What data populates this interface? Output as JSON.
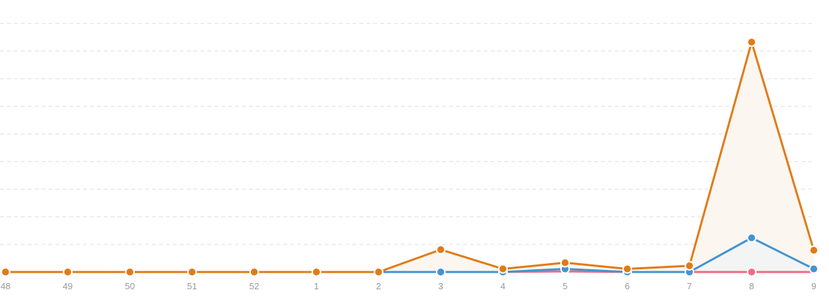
{
  "chart_data": {
    "type": "line",
    "title": "",
    "xlabel": "",
    "ylabel": "",
    "categories": [
      "48",
      "49",
      "50",
      "51",
      "52",
      "1",
      "2",
      "3",
      "4",
      "5",
      "6",
      "7",
      "8",
      "9"
    ],
    "ylim": [
      0,
      40
    ],
    "grid": true,
    "gridline_count": 9,
    "series": [
      {
        "color": "#e07b17",
        "fill": "#fbf6ef",
        "values": [
          0,
          0,
          0,
          0,
          0,
          0,
          0,
          3.6,
          0.5,
          1.5,
          0.5,
          1.0,
          37.0,
          3.5
        ]
      },
      {
        "color": "#4394cf",
        "fill": "#f2f5f3",
        "values": [
          null,
          null,
          null,
          null,
          null,
          null,
          0,
          0,
          0,
          0.5,
          0,
          0,
          5.5,
          0.5
        ]
      },
      {
        "color": "#ec6b84",
        "fill": "none",
        "values": [
          null,
          null,
          null,
          null,
          null,
          null,
          null,
          null,
          0,
          0.1,
          0,
          0,
          0,
          0
        ]
      }
    ]
  }
}
